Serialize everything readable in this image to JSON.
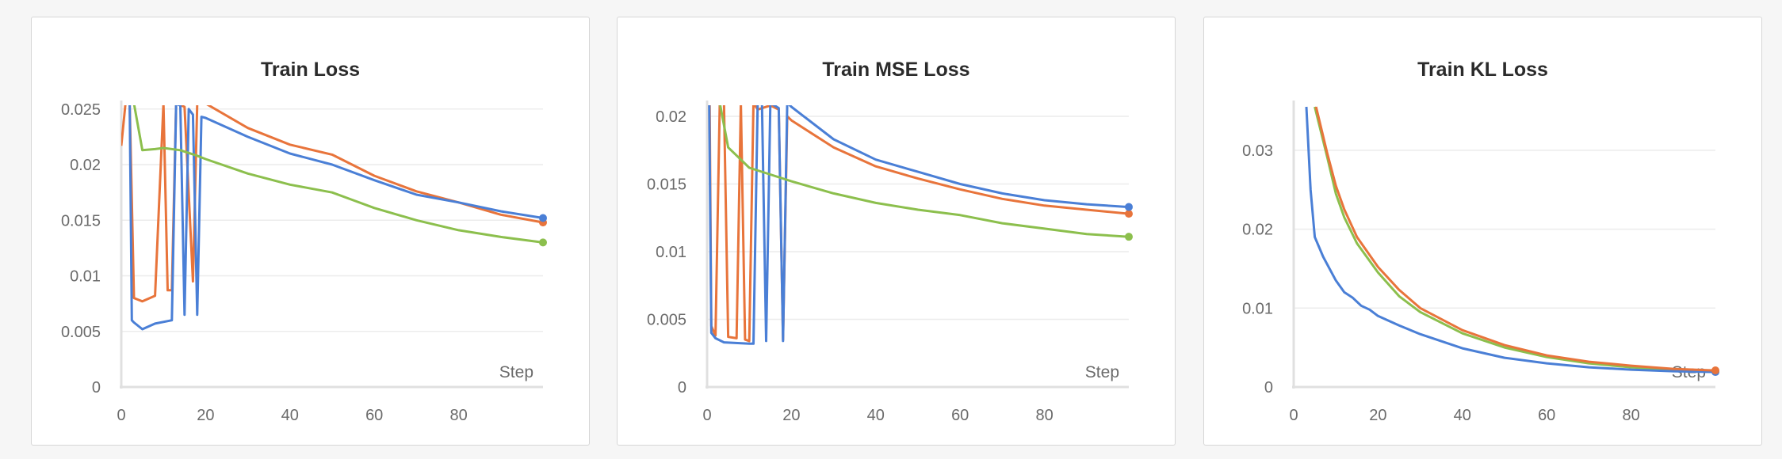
{
  "colors": {
    "blue": "#4a7fd6",
    "orange": "#e8743b",
    "green": "#8cbf4d",
    "grid": "#ececec",
    "axis": "#e0e0e0"
  },
  "chart_data": [
    {
      "type": "line",
      "title": "Train Loss",
      "xlabel": "Step",
      "ylabel": "",
      "xlim": [
        0,
        100
      ],
      "ylim": [
        0,
        0.0252
      ],
      "xticks": [
        0,
        20,
        40,
        60,
        80
      ],
      "xtick_labels": [
        "0",
        "20",
        "40",
        "60",
        "80"
      ],
      "yticks": [
        0,
        0.005,
        0.01,
        0.015,
        0.02,
        0.025
      ],
      "ytick_labels": [
        "0",
        "0.005",
        "0.01",
        "0.015",
        "0.02",
        "0.025"
      ],
      "grid": true,
      "series": [
        {
          "color": "orange",
          "end_marker": true,
          "points": [
            [
              0,
              0.0217
            ],
            [
              1,
              0.0255
            ],
            [
              2,
              0.0255
            ],
            [
              3,
              0.008
            ],
            [
              5,
              0.0077
            ],
            [
              8,
              0.0082
            ],
            [
              10,
              0.0255
            ],
            [
              11,
              0.0087
            ],
            [
              12,
              0.0087
            ],
            [
              13,
              0.0255
            ],
            [
              15,
              0.0252
            ],
            [
              17,
              0.0095
            ],
            [
              18,
              0.0255
            ],
            [
              20,
              0.0255
            ],
            [
              30,
              0.0233
            ],
            [
              40,
              0.0218
            ],
            [
              50,
              0.0209
            ],
            [
              60,
              0.019
            ],
            [
              70,
              0.0176
            ],
            [
              80,
              0.0166
            ],
            [
              90,
              0.0155
            ],
            [
              100,
              0.0148
            ]
          ]
        },
        {
          "color": "blue",
          "end_marker": true,
          "points": [
            [
              2,
              0.0255
            ],
            [
              2.5,
              0.006
            ],
            [
              3,
              0.0058
            ],
            [
              5,
              0.0052
            ],
            [
              8,
              0.0057
            ],
            [
              12,
              0.006
            ],
            [
              13,
              0.0255
            ],
            [
              14,
              0.0253
            ],
            [
              15,
              0.0065
            ],
            [
              16,
              0.025
            ],
            [
              17,
              0.0245
            ],
            [
              18,
              0.0065
            ],
            [
              19,
              0.0243
            ],
            [
              20,
              0.0242
            ],
            [
              30,
              0.0225
            ],
            [
              40,
              0.021
            ],
            [
              50,
              0.02
            ],
            [
              60,
              0.0186
            ],
            [
              70,
              0.0173
            ],
            [
              80,
              0.0166
            ],
            [
              90,
              0.0158
            ],
            [
              100,
              0.0152
            ]
          ]
        },
        {
          "color": "green",
          "end_marker": true,
          "points": [
            [
              3,
              0.0255
            ],
            [
              5,
              0.0213
            ],
            [
              8,
              0.0214
            ],
            [
              10,
              0.0215
            ],
            [
              14,
              0.0213
            ],
            [
              18,
              0.0208
            ],
            [
              20,
              0.0205
            ],
            [
              30,
              0.0192
            ],
            [
              40,
              0.0182
            ],
            [
              50,
              0.0175
            ],
            [
              55,
              0.0168
            ],
            [
              60,
              0.0161
            ],
            [
              70,
              0.015
            ],
            [
              80,
              0.0141
            ],
            [
              90,
              0.0135
            ],
            [
              100,
              0.013
            ]
          ]
        }
      ]
    },
    {
      "type": "line",
      "title": "Train MSE Loss",
      "xlabel": "Step",
      "ylabel": "",
      "xlim": [
        0,
        100
      ],
      "ylim": [
        0,
        0.0207
      ],
      "xticks": [
        0,
        20,
        40,
        60,
        80
      ],
      "xtick_labels": [
        "0",
        "20",
        "40",
        "60",
        "80"
      ],
      "yticks": [
        0,
        0.005,
        0.01,
        0.015,
        0.02
      ],
      "ytick_labels": [
        "0",
        "0.005",
        "0.01",
        "0.015",
        "0.02"
      ],
      "grid": true,
      "series": [
        {
          "color": "orange",
          "end_marker": true,
          "points": [
            [
              0.6,
              0.021
            ],
            [
              1,
              0.0045
            ],
            [
              2,
              0.0038
            ],
            [
              3,
              0.021
            ],
            [
              4,
              0.021
            ],
            [
              5,
              0.0037
            ],
            [
              7,
              0.0036
            ],
            [
              8,
              0.021
            ],
            [
              9,
              0.0035
            ],
            [
              10,
              0.0034
            ],
            [
              11,
              0.021
            ],
            [
              12,
              0.0205
            ],
            [
              15,
              0.0208
            ],
            [
              17,
              0.0205
            ],
            [
              18,
              0.0035
            ],
            [
              19,
              0.02
            ],
            [
              20,
              0.0197
            ],
            [
              30,
              0.0177
            ],
            [
              40,
              0.0163
            ],
            [
              50,
              0.0154
            ],
            [
              60,
              0.0146
            ],
            [
              70,
              0.0139
            ],
            [
              80,
              0.0134
            ],
            [
              90,
              0.0131
            ],
            [
              100,
              0.0128
            ]
          ]
        },
        {
          "color": "blue",
          "end_marker": true,
          "points": [
            [
              0.5,
              0.021
            ],
            [
              1,
              0.004
            ],
            [
              2,
              0.0036
            ],
            [
              4,
              0.0033
            ],
            [
              10,
              0.0032
            ],
            [
              11,
              0.0032
            ],
            [
              12,
              0.021
            ],
            [
              13,
              0.021
            ],
            [
              14,
              0.0034
            ],
            [
              15,
              0.021
            ],
            [
              17,
              0.0206
            ],
            [
              18,
              0.0034
            ],
            [
              19,
              0.021
            ],
            [
              20,
              0.0207
            ],
            [
              30,
              0.0183
            ],
            [
              40,
              0.0168
            ],
            [
              50,
              0.0159
            ],
            [
              60,
              0.015
            ],
            [
              70,
              0.0143
            ],
            [
              80,
              0.0138
            ],
            [
              90,
              0.0135
            ],
            [
              100,
              0.0133
            ]
          ]
        },
        {
          "color": "green",
          "end_marker": true,
          "points": [
            [
              3,
              0.021
            ],
            [
              5,
              0.0177
            ],
            [
              8,
              0.0168
            ],
            [
              10,
              0.0162
            ],
            [
              15,
              0.0157
            ],
            [
              20,
              0.0152
            ],
            [
              30,
              0.0143
            ],
            [
              40,
              0.0136
            ],
            [
              50,
              0.0131
            ],
            [
              60,
              0.0127
            ],
            [
              70,
              0.0121
            ],
            [
              80,
              0.0117
            ],
            [
              90,
              0.0113
            ],
            [
              100,
              0.0111
            ]
          ]
        }
      ]
    },
    {
      "type": "line",
      "title": "Train KL Loss",
      "xlabel": "Step",
      "ylabel": "",
      "xlim": [
        0,
        100
      ],
      "ylim": [
        0,
        0.0355
      ],
      "xticks": [
        0,
        20,
        40,
        60,
        80
      ],
      "xtick_labels": [
        "0",
        "20",
        "40",
        "60",
        "80"
      ],
      "yticks": [
        0,
        0.01,
        0.02,
        0.03
      ],
      "ytick_labels": [
        "0",
        "0.01",
        "0.02",
        "0.03"
      ],
      "grid": true,
      "series": [
        {
          "color": "green",
          "end_marker": true,
          "points": [
            [
              5,
              0.0355
            ],
            [
              8,
              0.029
            ],
            [
              10,
              0.0245
            ],
            [
              12,
              0.0215
            ],
            [
              15,
              0.0182
            ],
            [
              20,
              0.0145
            ],
            [
              25,
              0.0115
            ],
            [
              30,
              0.0095
            ],
            [
              40,
              0.0068
            ],
            [
              50,
              0.005
            ],
            [
              60,
              0.0038
            ],
            [
              70,
              0.003
            ],
            [
              80,
              0.0025
            ],
            [
              90,
              0.0022
            ],
            [
              100,
              0.002
            ]
          ]
        },
        {
          "color": "blue",
          "end_marker": true,
          "points": [
            [
              3,
              0.0355
            ],
            [
              4,
              0.025
            ],
            [
              5,
              0.019
            ],
            [
              7,
              0.0165
            ],
            [
              10,
              0.0135
            ],
            [
              12,
              0.012
            ],
            [
              14,
              0.0113
            ],
            [
              16,
              0.0103
            ],
            [
              18,
              0.0098
            ],
            [
              20,
              0.009
            ],
            [
              25,
              0.0078
            ],
            [
              30,
              0.0067
            ],
            [
              40,
              0.0049
            ],
            [
              50,
              0.0037
            ],
            [
              60,
              0.003
            ],
            [
              70,
              0.0025
            ],
            [
              80,
              0.0022
            ],
            [
              90,
              0.002
            ],
            [
              100,
              0.0019
            ]
          ]
        },
        {
          "color": "orange",
          "end_marker": true,
          "points": [
            [
              5.3,
              0.0355
            ],
            [
              8,
              0.0295
            ],
            [
              10,
              0.0255
            ],
            [
              12,
              0.0225
            ],
            [
              15,
              0.019
            ],
            [
              20,
              0.0152
            ],
            [
              25,
              0.0123
            ],
            [
              30,
              0.01
            ],
            [
              40,
              0.0072
            ],
            [
              50,
              0.0053
            ],
            [
              60,
              0.004
            ],
            [
              70,
              0.0032
            ],
            [
              80,
              0.0027
            ],
            [
              90,
              0.0023
            ],
            [
              100,
              0.0021
            ]
          ]
        }
      ]
    }
  ]
}
